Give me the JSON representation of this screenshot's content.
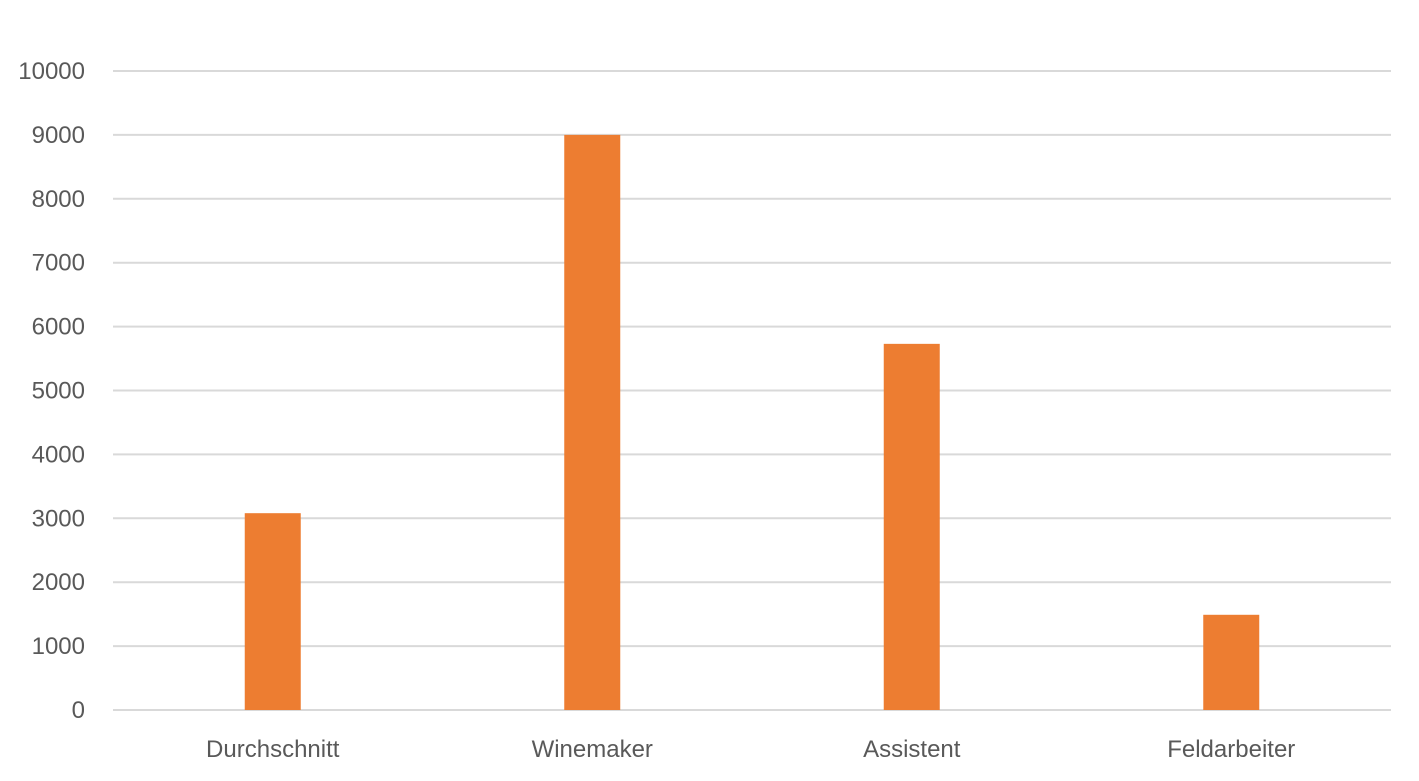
{
  "chart_data": {
    "type": "bar",
    "title": "",
    "xlabel": "",
    "ylabel": "",
    "categories": [
      "Durchschnitt",
      "Winemaker",
      "Assistent",
      "Feldarbeiter"
    ],
    "series": [
      {
        "values": [
          3080,
          9000,
          5730,
          1490
        ],
        "color": "#ed7d31"
      }
    ],
    "ylim": [
      0,
      10000
    ],
    "yticks": [
      0,
      1000,
      2000,
      3000,
      4000,
      5000,
      6000,
      7000,
      8000,
      9000,
      10000
    ],
    "grid": true,
    "legend": "none",
    "gridline_color": "#d9d9d9",
    "label_color": "#595959"
  }
}
